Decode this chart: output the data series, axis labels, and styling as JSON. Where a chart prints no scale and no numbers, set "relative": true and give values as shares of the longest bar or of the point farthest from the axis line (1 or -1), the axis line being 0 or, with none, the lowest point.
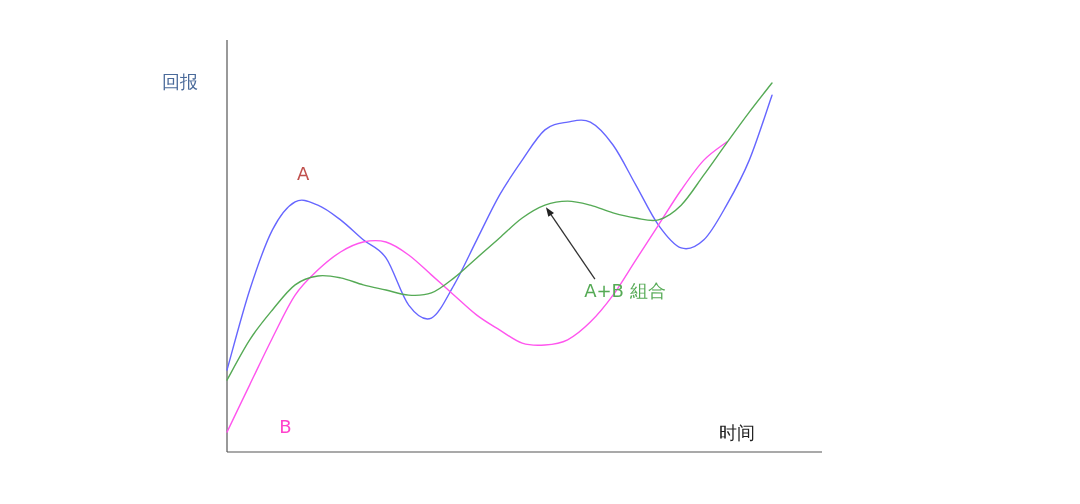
{
  "chart_data": {
    "type": "line",
    "relative": true,
    "ylabel": "回报",
    "xlabel": "时间",
    "marker": "none",
    "line_style": "solid",
    "categories": [
      null,
      null,
      null,
      null,
      null,
      null,
      null,
      null,
      null,
      null,
      null,
      null,
      null,
      null,
      null,
      null,
      null,
      null,
      null,
      null,
      null,
      null,
      null,
      null,
      null
    ],
    "series": [
      {
        "name": "A",
        "color": "#6666ff",
        "values": [
          0.222,
          0.439,
          0.602,
          0.678,
          0.669,
          0.629,
          0.575,
          0.526,
          0.398,
          0.363,
          0.453,
          0.575,
          0.696,
          0.791,
          0.873,
          0.894,
          0.894,
          0.832,
          0.724,
          0.615,
          0.553,
          0.575,
          0.669,
          0.791,
          0.967
        ]
      },
      {
        "name": "B",
        "color": "#ff55ee",
        "values": [
          0.054,
          0.182,
          0.309,
          0.425,
          0.493,
          0.542,
          0.569,
          0.569,
          0.534,
          0.48,
          0.425,
          0.371,
          0.331,
          0.295,
          0.29,
          0.304,
          0.352,
          0.425,
          0.52,
          0.615,
          0.71,
          0.791,
          0.84,
          null,
          null
        ]
      },
      {
        "name": "A+B 組合",
        "color": "#55aa55",
        "values": [
          0.195,
          0.304,
          0.385,
          0.453,
          0.477,
          0.472,
          0.453,
          0.439,
          0.425,
          0.431,
          0.472,
          0.526,
          0.58,
          0.634,
          0.669,
          0.68,
          0.669,
          0.648,
          0.634,
          0.629,
          0.669,
          0.751,
          0.837,
          0.921,
          1
        ]
      }
    ]
  }
}
